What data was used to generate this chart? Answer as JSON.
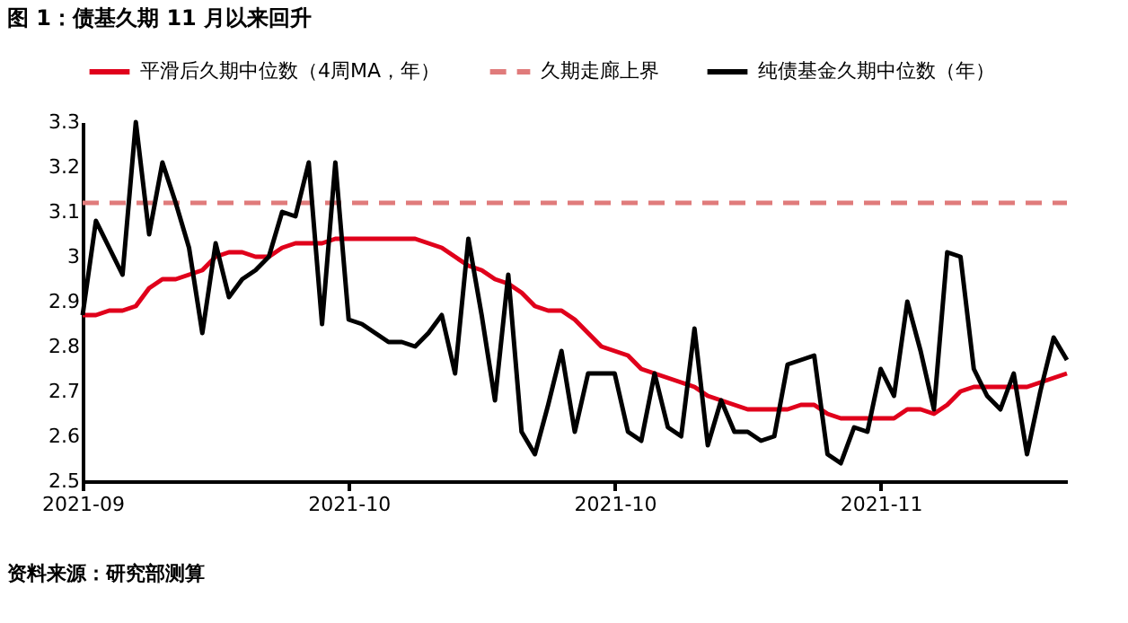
{
  "chart_data": {
    "type": "line",
    "title": "图 1：债基久期 11 月以来回升",
    "categories": [
      "2021-09",
      null,
      null,
      null,
      null,
      null,
      null,
      null,
      null,
      null,
      null,
      null,
      null,
      null,
      null,
      null,
      null,
      null,
      null,
      null,
      "2021-10",
      null,
      null,
      null,
      null,
      null,
      null,
      null,
      null,
      null,
      null,
      null,
      null,
      null,
      null,
      null,
      null,
      null,
      null,
      null,
      "2021-10",
      null,
      null,
      null,
      null,
      null,
      null,
      null,
      null,
      null,
      null,
      null,
      null,
      null,
      null,
      null,
      null,
      null,
      null,
      null,
      "2021-11",
      null,
      null,
      null,
      null,
      null,
      null,
      null,
      null,
      null,
      null,
      null,
      null,
      null,
      null
    ],
    "ylim": [
      2.5,
      3.3
    ],
    "yticks": [
      2.5,
      2.6,
      2.7,
      2.8,
      2.9,
      3,
      3.1,
      3.2,
      3.3
    ],
    "grid": false,
    "legend": "top",
    "marker": "none",
    "series": [
      {
        "name": "平滑后久期中位数（4周MA，年）",
        "color": "#e0001b",
        "line_style": "solid",
        "values": [
          2.87,
          2.87,
          2.88,
          2.88,
          2.89,
          2.93,
          2.95,
          2.95,
          2.96,
          2.97,
          3.0,
          3.01,
          3.01,
          3.0,
          3.0,
          3.02,
          3.03,
          3.03,
          3.03,
          3.04,
          3.04,
          3.04,
          3.04,
          3.04,
          3.04,
          3.04,
          3.03,
          3.02,
          3.0,
          2.98,
          2.97,
          2.95,
          2.94,
          2.92,
          2.89,
          2.88,
          2.88,
          2.86,
          2.83,
          2.8,
          2.79,
          2.78,
          2.75,
          2.74,
          2.73,
          2.72,
          2.71,
          2.69,
          2.68,
          2.67,
          2.66,
          2.66,
          2.66,
          2.66,
          2.67,
          2.67,
          2.65,
          2.64,
          2.64,
          2.64,
          2.64,
          2.64,
          2.66,
          2.66,
          2.65,
          2.67,
          2.7,
          2.71,
          2.71,
          2.71,
          2.71,
          2.71,
          2.72,
          2.73,
          2.74
        ]
      },
      {
        "name": "久期走廊上界",
        "color": "#e07b7b",
        "line_style": "dashed",
        "values": [
          3.12,
          3.12,
          3.12,
          3.12,
          3.12,
          3.12,
          3.12,
          3.12,
          3.12,
          3.12,
          3.12,
          3.12,
          3.12,
          3.12,
          3.12,
          3.12,
          3.12,
          3.12,
          3.12,
          3.12,
          3.12,
          3.12,
          3.12,
          3.12,
          3.12,
          3.12,
          3.12,
          3.12,
          3.12,
          3.12,
          3.12,
          3.12,
          3.12,
          3.12,
          3.12,
          3.12,
          3.12,
          3.12,
          3.12,
          3.12,
          3.12,
          3.12,
          3.12,
          3.12,
          3.12,
          3.12,
          3.12,
          3.12,
          3.12,
          3.12,
          3.12,
          3.12,
          3.12,
          3.12,
          3.12,
          3.12,
          3.12,
          3.12,
          3.12,
          3.12,
          3.12,
          3.12,
          3.12,
          3.12,
          3.12,
          3.12,
          3.12,
          3.12,
          3.12,
          3.12,
          3.12,
          3.12,
          3.12,
          3.12,
          3.12
        ]
      },
      {
        "name": "纯债基金久期中位数（年）",
        "color": "#000000",
        "line_style": "solid",
        "values": [
          2.87,
          3.08,
          3.02,
          2.96,
          3.3,
          3.05,
          3.21,
          3.12,
          3.02,
          2.83,
          3.03,
          2.91,
          2.95,
          2.97,
          3.0,
          3.1,
          3.09,
          3.21,
          2.85,
          3.21,
          2.86,
          2.85,
          2.83,
          2.81,
          2.81,
          2.8,
          2.83,
          2.87,
          2.74,
          3.04,
          2.87,
          2.68,
          2.96,
          2.61,
          2.56,
          2.67,
          2.79,
          2.61,
          2.74,
          2.74,
          2.74,
          2.61,
          2.59,
          2.74,
          2.62,
          2.6,
          2.84,
          2.58,
          2.68,
          2.61,
          2.61,
          2.59,
          2.6,
          2.76,
          2.77,
          2.78,
          2.56,
          2.54,
          2.62,
          2.61,
          2.75,
          2.69,
          2.9,
          2.79,
          2.66,
          3.01,
          3.0,
          2.75,
          2.69,
          2.66,
          2.74,
          2.56,
          2.7,
          2.82,
          2.77
        ]
      }
    ],
    "annotations": [
      "资料来源：研究部测算"
    ]
  }
}
